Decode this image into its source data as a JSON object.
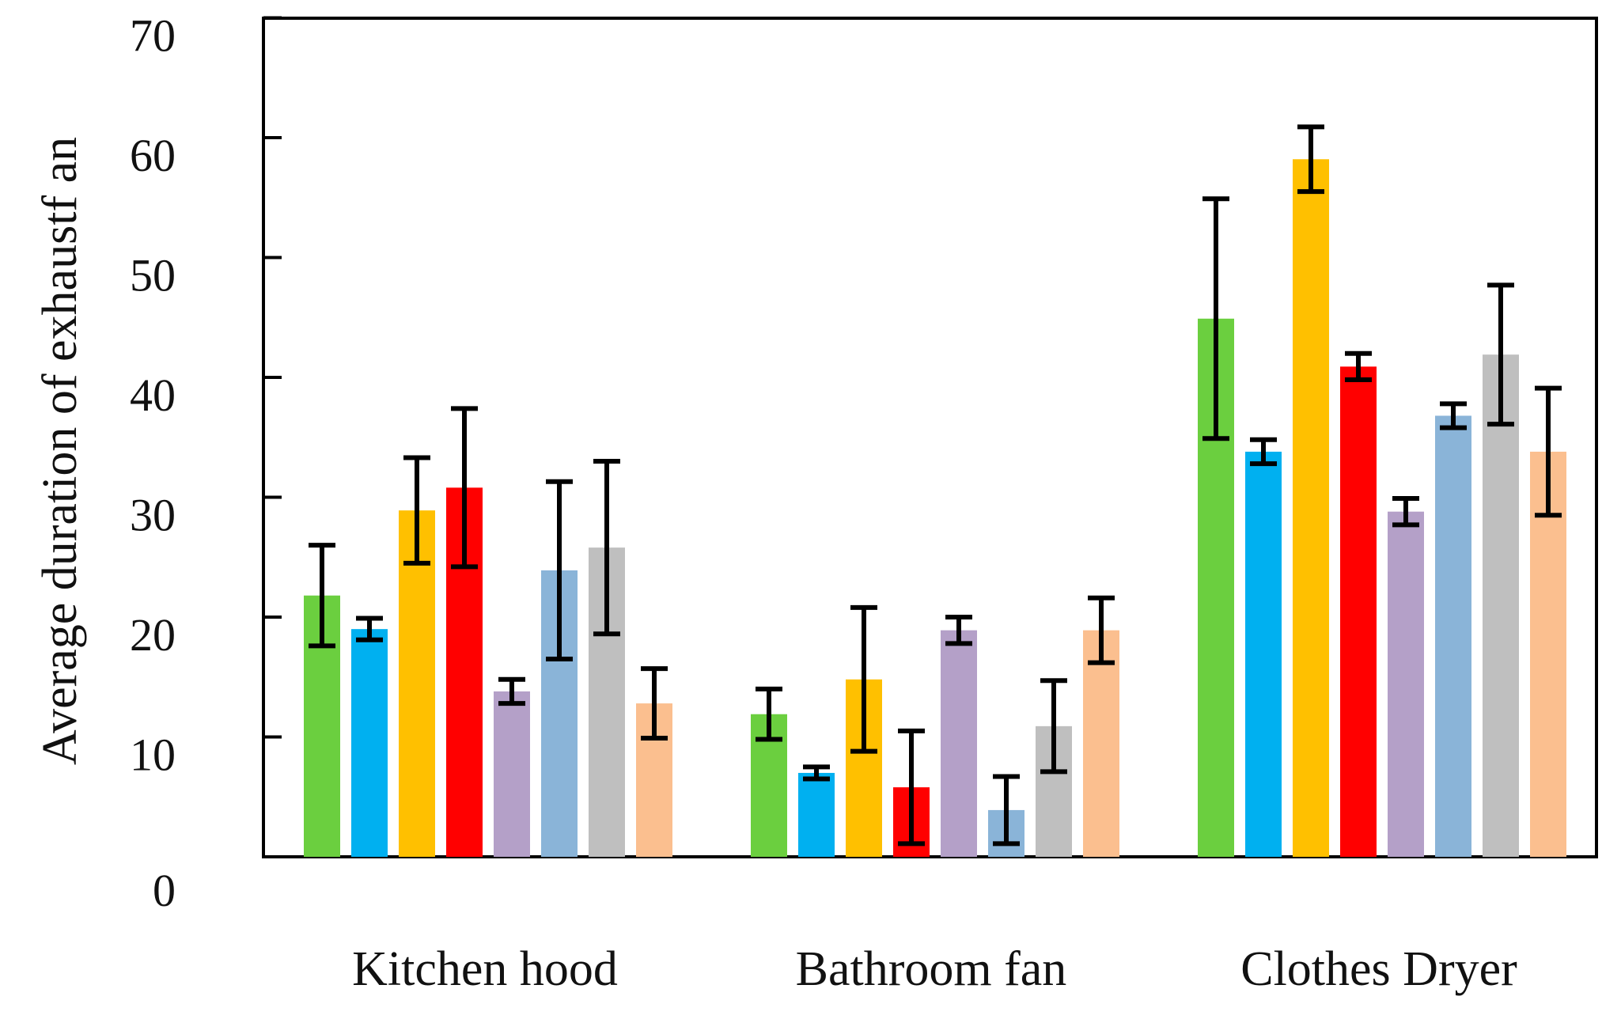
{
  "chart_data": {
    "type": "bar",
    "title": "",
    "xlabel": "",
    "ylabel": "Average duration of exhaustf an",
    "ylim": [
      0,
      70
    ],
    "yticks": [
      0,
      10,
      20,
      30,
      40,
      50,
      60,
      70
    ],
    "ytick_labels": [
      "0",
      "10",
      "20",
      "30",
      "40",
      "50",
      "60",
      "70"
    ],
    "grid": false,
    "categories": [
      "Kitchen hood",
      "Bathroom fan",
      "Clothes Dryer"
    ],
    "series": [
      {
        "color": "#6bcf3f",
        "values": [
          21.8,
          11.9,
          44.9
        ],
        "errors": [
          4.2,
          2.1,
          10.0
        ]
      },
      {
        "color": "#00b0f0",
        "values": [
          19.0,
          7.0,
          33.8
        ],
        "errors": [
          0.9,
          0.5,
          1.0
        ]
      },
      {
        "color": "#ffc000",
        "values": [
          28.9,
          14.8,
          58.2
        ],
        "errors": [
          4.4,
          6.0,
          2.7
        ]
      },
      {
        "color": "#ff0000",
        "values": [
          30.8,
          5.8,
          40.9
        ],
        "errors": [
          6.6,
          4.7,
          1.1
        ]
      },
      {
        "color": "#b4a0c8",
        "values": [
          13.8,
          18.9,
          28.8
        ],
        "errors": [
          1.0,
          1.1,
          1.1
        ]
      },
      {
        "color": "#8ab4d8",
        "values": [
          23.9,
          3.9,
          36.8
        ],
        "errors": [
          7.4,
          2.8,
          1.0
        ]
      },
      {
        "color": "#bfbfbf",
        "values": [
          25.8,
          10.9,
          41.9
        ],
        "errors": [
          7.2,
          3.8,
          5.8
        ]
      },
      {
        "color": "#fbbf8f",
        "values": [
          12.8,
          18.9,
          33.8
        ],
        "errors": [
          2.9,
          2.7,
          5.3
        ]
      }
    ]
  }
}
